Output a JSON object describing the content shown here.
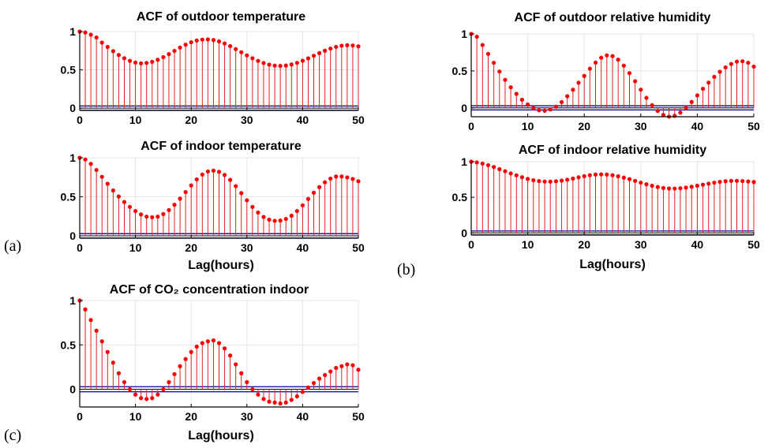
{
  "colors": {
    "stem": "#e02020",
    "marker": "#ff0000",
    "bound": "#1a1aa0",
    "zero": "#000000",
    "grid": "#e6e6e6"
  },
  "panel_labels": {
    "a": "(a)",
    "b": "(b)",
    "c": "(c)"
  },
  "chart_data": [
    {
      "type": "stem",
      "title": "ACF of outdoor temperature",
      "xlabel": "",
      "xlim": [
        0,
        50
      ],
      "ylim": [
        -0.03,
        1.0
      ],
      "xticks": [
        "0",
        "10",
        "20",
        "30",
        "40",
        "50"
      ],
      "yticks": [
        "0",
        "0.5",
        "1"
      ],
      "confidence_bound": 0.028,
      "grid": true,
      "x": [
        0,
        1,
        2,
        3,
        4,
        5,
        6,
        7,
        8,
        9,
        10,
        11,
        12,
        13,
        14,
        15,
        16,
        17,
        18,
        19,
        20,
        21,
        22,
        23,
        24,
        25,
        26,
        27,
        28,
        29,
        30,
        31,
        32,
        33,
        34,
        35,
        36,
        37,
        38,
        39,
        40,
        41,
        42,
        43,
        44,
        45,
        46,
        47,
        48,
        49,
        50
      ],
      "values": [
        1.0,
        0.988,
        0.959,
        0.922,
        0.856,
        0.799,
        0.744,
        0.694,
        0.651,
        0.617,
        0.595,
        0.585,
        0.59,
        0.605,
        0.632,
        0.666,
        0.705,
        0.748,
        0.79,
        0.829,
        0.86,
        0.883,
        0.895,
        0.897,
        0.889,
        0.871,
        0.844,
        0.81,
        0.771,
        0.73,
        0.689,
        0.651,
        0.617,
        0.589,
        0.568,
        0.555,
        0.551,
        0.556,
        0.57,
        0.591,
        0.619,
        0.65,
        0.684,
        0.718,
        0.75,
        0.778,
        0.8,
        0.815,
        0.821,
        0.818,
        0.807
      ]
    },
    {
      "type": "stem",
      "title": "ACF of outdoor relative humidity",
      "xlabel": "",
      "xlim": [
        0,
        50
      ],
      "ylim": [
        -0.12,
        1.0
      ],
      "xticks": [
        "0",
        "10",
        "20",
        "30",
        "40",
        "50"
      ],
      "yticks": [
        "0",
        "0.5",
        "1"
      ],
      "confidence_bound": 0.028,
      "grid": true,
      "x": [
        0,
        1,
        2,
        3,
        4,
        5,
        6,
        7,
        8,
        9,
        10,
        11,
        12,
        13,
        14,
        15,
        16,
        17,
        18,
        19,
        20,
        21,
        22,
        23,
        24,
        25,
        26,
        27,
        28,
        29,
        30,
        31,
        32,
        33,
        34,
        35,
        36,
        37,
        38,
        39,
        40,
        41,
        42,
        43,
        44,
        45,
        46,
        47,
        48,
        49,
        50
      ],
      "values": [
        1.0,
        0.962,
        0.85,
        0.73,
        0.609,
        0.491,
        0.379,
        0.278,
        0.189,
        0.11,
        0.045,
        -0.003,
        -0.033,
        -0.039,
        -0.022,
        0.016,
        0.078,
        0.157,
        0.245,
        0.34,
        0.432,
        0.53,
        0.612,
        0.678,
        0.71,
        0.7,
        0.652,
        0.571,
        0.47,
        0.36,
        0.246,
        0.135,
        0.036,
        -0.042,
        -0.096,
        -0.118,
        -0.108,
        -0.065,
        0.0,
        0.08,
        0.168,
        0.258,
        0.341,
        0.419,
        0.488,
        0.547,
        0.594,
        0.625,
        0.63,
        0.61,
        0.558
      ]
    },
    {
      "type": "stem",
      "title": "ACF of indoor temperature",
      "xlabel": "Lag(hours)",
      "xlim": [
        0,
        50
      ],
      "ylim": [
        -0.03,
        1.0
      ],
      "xticks": [
        "0",
        "10",
        "20",
        "30",
        "40",
        "50"
      ],
      "yticks": [
        "0",
        "0.5",
        "1"
      ],
      "confidence_bound": 0.028,
      "grid": true,
      "x": [
        0,
        1,
        2,
        3,
        4,
        5,
        6,
        7,
        8,
        9,
        10,
        11,
        12,
        13,
        14,
        15,
        16,
        17,
        18,
        19,
        20,
        21,
        22,
        23,
        24,
        25,
        26,
        27,
        28,
        29,
        30,
        31,
        32,
        33,
        34,
        35,
        36,
        37,
        38,
        39,
        40,
        41,
        42,
        43,
        44,
        45,
        46,
        47,
        48,
        49,
        50
      ],
      "values": [
        1.0,
        0.978,
        0.922,
        0.843,
        0.756,
        0.667,
        0.581,
        0.504,
        0.433,
        0.371,
        0.318,
        0.274,
        0.246,
        0.238,
        0.246,
        0.279,
        0.33,
        0.398,
        0.476,
        0.56,
        0.645,
        0.723,
        0.785,
        0.824,
        0.835,
        0.82,
        0.779,
        0.716,
        0.636,
        0.547,
        0.455,
        0.371,
        0.299,
        0.242,
        0.207,
        0.193,
        0.196,
        0.217,
        0.258,
        0.318,
        0.391,
        0.472,
        0.552,
        0.624,
        0.686,
        0.733,
        0.759,
        0.76,
        0.748,
        0.728,
        0.699
      ]
    },
    {
      "type": "stem",
      "title": "ACF of indoor relative humidity",
      "xlabel": "Lag(hours)",
      "xlim": [
        0,
        50
      ],
      "ylim": [
        -0.03,
        1.0
      ],
      "xticks": [
        "0",
        "10",
        "20",
        "30",
        "40",
        "50"
      ],
      "yticks": [
        "0",
        "0.5",
        "1"
      ],
      "confidence_bound": 0.028,
      "grid": true,
      "x": [
        0,
        1,
        2,
        3,
        4,
        5,
        6,
        7,
        8,
        9,
        10,
        11,
        12,
        13,
        14,
        15,
        16,
        17,
        18,
        19,
        20,
        21,
        22,
        23,
        24,
        25,
        26,
        27,
        28,
        29,
        30,
        31,
        32,
        33,
        34,
        35,
        36,
        37,
        38,
        39,
        40,
        41,
        42,
        43,
        44,
        45,
        46,
        47,
        48,
        49,
        50
      ],
      "values": [
        1.0,
        0.99,
        0.974,
        0.951,
        0.925,
        0.895,
        0.866,
        0.836,
        0.808,
        0.782,
        0.758,
        0.74,
        0.727,
        0.721,
        0.72,
        0.725,
        0.734,
        0.747,
        0.763,
        0.781,
        0.797,
        0.81,
        0.819,
        0.822,
        0.819,
        0.81,
        0.795,
        0.776,
        0.755,
        0.731,
        0.706,
        0.683,
        0.662,
        0.644,
        0.631,
        0.624,
        0.623,
        0.627,
        0.636,
        0.648,
        0.662,
        0.677,
        0.692,
        0.706,
        0.717,
        0.726,
        0.731,
        0.731,
        0.728,
        0.722,
        0.715
      ]
    },
    {
      "type": "stem",
      "title": "ACF of CO₂ concentration indoor",
      "xlabel": "Lag(hours)",
      "xlim": [
        0,
        50
      ],
      "ylim": [
        -0.2,
        1.0
      ],
      "xticks": [
        "0",
        "10",
        "20",
        "30",
        "40",
        "50"
      ],
      "yticks": [
        "0",
        "0.5",
        "1"
      ],
      "confidence_bound": 0.028,
      "grid": true,
      "x": [
        0,
        1,
        2,
        3,
        4,
        5,
        6,
        7,
        8,
        9,
        10,
        11,
        12,
        13,
        14,
        15,
        16,
        17,
        18,
        19,
        20,
        21,
        22,
        23,
        24,
        25,
        26,
        27,
        28,
        29,
        30,
        31,
        32,
        33,
        34,
        35,
        36,
        37,
        38,
        39,
        40,
        41,
        42,
        43,
        44,
        45,
        46,
        47,
        48,
        49,
        50
      ],
      "values": [
        1.0,
        0.9,
        0.78,
        0.66,
        0.54,
        0.42,
        0.3,
        0.18,
        0.08,
        0.0,
        -0.06,
        -0.1,
        -0.11,
        -0.1,
        -0.06,
        0.0,
        0.08,
        0.17,
        0.26,
        0.34,
        0.42,
        0.48,
        0.52,
        0.54,
        0.55,
        0.52,
        0.46,
        0.38,
        0.28,
        0.18,
        0.08,
        0.0,
        -0.06,
        -0.11,
        -0.14,
        -0.15,
        -0.16,
        -0.15,
        -0.12,
        -0.08,
        -0.03,
        0.02,
        0.07,
        0.12,
        0.16,
        0.2,
        0.24,
        0.26,
        0.28,
        0.27,
        0.22
      ]
    }
  ]
}
